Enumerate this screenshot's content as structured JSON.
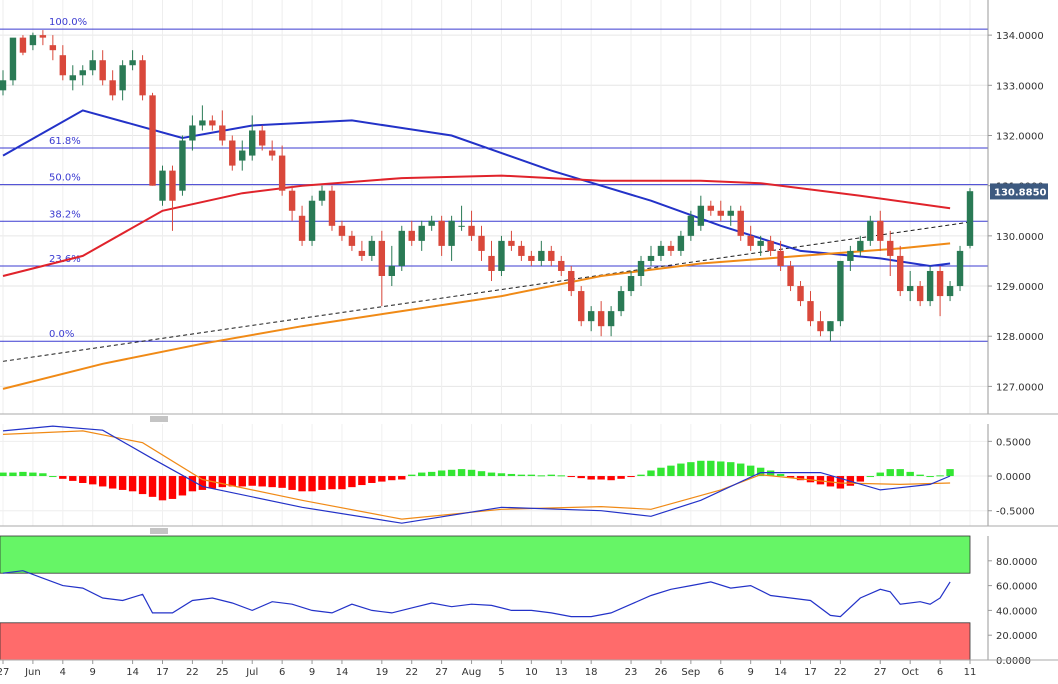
{
  "chart_data": [
    {
      "type": "candlestick",
      "panel": "price",
      "x_ticks": [
        "27",
        "Jun",
        "4",
        "9",
        "14",
        "17",
        "22",
        "25",
        "Jul",
        "6",
        "9",
        "14",
        "19",
        "22",
        "27",
        "Aug",
        "5",
        "10",
        "13",
        "18",
        "23",
        "26",
        "Sep",
        "6",
        "9",
        "14",
        "17",
        "22",
        "27",
        "Oct",
        "6",
        "11"
      ],
      "y_ticks": [
        "134.0000",
        "133.0000",
        "132.0000",
        "131.0000",
        "130.0000",
        "129.0000",
        "128.0000",
        "127.0000"
      ],
      "ylim": [
        126.45,
        134.7
      ],
      "last_price_label": "130.8850",
      "colors": {
        "up": "#2a7a55",
        "down": "#d9483b",
        "grid": "#e6e6e6",
        "fib": "#3b3bd1",
        "axis_label_bg": "#3d5a80"
      },
      "candles": [
        [
          132.9,
          133.3,
          132.8,
          133.1
        ],
        [
          133.1,
          133.9,
          133.0,
          133.95
        ],
        [
          133.95,
          134.0,
          133.6,
          133.65
        ],
        [
          133.8,
          134.05,
          133.7,
          134.0
        ],
        [
          134.0,
          134.1,
          133.8,
          133.95
        ],
        [
          133.8,
          134.0,
          133.5,
          133.7
        ],
        [
          133.6,
          133.8,
          133.1,
          133.2
        ],
        [
          133.1,
          133.4,
          132.9,
          133.2
        ],
        [
          133.2,
          133.4,
          133.0,
          133.3
        ],
        [
          133.3,
          133.7,
          133.2,
          133.5
        ],
        [
          133.5,
          133.7,
          133.0,
          133.1
        ],
        [
          133.1,
          133.3,
          132.7,
          132.8
        ],
        [
          132.9,
          133.5,
          132.7,
          133.4
        ],
        [
          133.4,
          133.7,
          133.3,
          133.5
        ],
        [
          133.5,
          133.6,
          132.7,
          132.8
        ],
        [
          132.8,
          132.85,
          131.0,
          131.0
        ],
        [
          130.7,
          131.4,
          130.6,
          131.3
        ],
        [
          131.3,
          131.4,
          130.1,
          130.7
        ],
        [
          130.9,
          132.0,
          130.8,
          131.9
        ],
        [
          131.9,
          132.4,
          131.7,
          132.2
        ],
        [
          132.2,
          132.6,
          132.1,
          132.3
        ],
        [
          132.3,
          132.4,
          132.1,
          132.2
        ],
        [
          132.2,
          132.5,
          131.8,
          131.9
        ],
        [
          131.9,
          132.0,
          131.3,
          131.4
        ],
        [
          131.5,
          131.9,
          131.3,
          131.7
        ],
        [
          131.6,
          132.4,
          131.5,
          132.1
        ],
        [
          132.1,
          132.2,
          131.7,
          131.8
        ],
        [
          131.7,
          131.9,
          131.5,
          131.6
        ],
        [
          131.6,
          131.8,
          130.8,
          130.9
        ],
        [
          130.9,
          131.0,
          130.3,
          130.5
        ],
        [
          130.4,
          130.6,
          129.8,
          129.9
        ],
        [
          129.9,
          130.8,
          129.8,
          130.7
        ],
        [
          130.7,
          131.0,
          130.6,
          130.9
        ],
        [
          130.9,
          131.0,
          130.1,
          130.2
        ],
        [
          130.2,
          130.3,
          129.9,
          130.0
        ],
        [
          130.0,
          130.1,
          129.7,
          129.8
        ],
        [
          129.7,
          129.9,
          129.5,
          129.6
        ],
        [
          129.6,
          130.0,
          129.5,
          129.9
        ],
        [
          129.9,
          130.1,
          128.6,
          129.2
        ],
        [
          129.2,
          129.8,
          129.0,
          129.4
        ],
        [
          129.4,
          130.2,
          129.3,
          130.1
        ],
        [
          130.1,
          130.3,
          129.8,
          129.9
        ],
        [
          129.9,
          130.3,
          129.7,
          130.2
        ],
        [
          130.2,
          130.4,
          130.1,
          130.3
        ],
        [
          130.3,
          130.4,
          129.6,
          129.8
        ],
        [
          129.8,
          130.4,
          129.5,
          130.3
        ],
        [
          130.2,
          130.6,
          130.1,
          130.2
        ],
        [
          130.2,
          130.5,
          129.9,
          130.0
        ],
        [
          130.0,
          130.2,
          129.5,
          129.7
        ],
        [
          129.6,
          129.9,
          129.1,
          129.3
        ],
        [
          129.3,
          130.0,
          129.2,
          129.9
        ],
        [
          129.9,
          130.1,
          129.7,
          129.8
        ],
        [
          129.8,
          129.9,
          129.5,
          129.6
        ],
        [
          129.6,
          129.7,
          129.4,
          129.5
        ],
        [
          129.5,
          129.9,
          129.4,
          129.7
        ],
        [
          129.7,
          129.8,
          129.4,
          129.5
        ],
        [
          129.5,
          129.6,
          129.2,
          129.3
        ],
        [
          129.3,
          129.4,
          128.8,
          128.9
        ],
        [
          128.9,
          129.0,
          128.2,
          128.3
        ],
        [
          128.3,
          128.6,
          128.1,
          128.5
        ],
        [
          128.5,
          128.7,
          128.0,
          128.2
        ],
        [
          128.2,
          128.6,
          128.0,
          128.5
        ],
        [
          128.5,
          129.0,
          128.4,
          128.9
        ],
        [
          128.9,
          129.3,
          128.8,
          129.2
        ],
        [
          129.2,
          129.6,
          129.0,
          129.5
        ],
        [
          129.5,
          129.8,
          129.4,
          129.6
        ],
        [
          129.6,
          129.9,
          129.5,
          129.8
        ],
        [
          129.8,
          129.9,
          129.6,
          129.7
        ],
        [
          129.7,
          130.1,
          129.6,
          130.0
        ],
        [
          130.0,
          130.5,
          129.9,
          130.4
        ],
        [
          130.2,
          130.8,
          130.1,
          130.6
        ],
        [
          130.6,
          130.7,
          130.4,
          130.5
        ],
        [
          130.5,
          130.7,
          130.3,
          130.4
        ],
        [
          130.4,
          130.6,
          130.2,
          130.5
        ],
        [
          130.5,
          130.6,
          129.9,
          130.0
        ],
        [
          130.0,
          130.2,
          129.7,
          129.8
        ],
        [
          129.8,
          130.0,
          129.6,
          129.9
        ],
        [
          129.9,
          130.0,
          129.6,
          129.7
        ],
        [
          129.7,
          129.9,
          129.3,
          129.4
        ],
        [
          129.4,
          129.5,
          128.9,
          129.0
        ],
        [
          129.0,
          129.1,
          128.6,
          128.7
        ],
        [
          128.7,
          128.9,
          128.2,
          128.3
        ],
        [
          128.3,
          128.5,
          128.0,
          128.1
        ],
        [
          128.1,
          128.3,
          127.9,
          128.3
        ],
        [
          128.3,
          129.5,
          128.2,
          129.5
        ],
        [
          129.5,
          129.8,
          129.3,
          129.7
        ],
        [
          129.7,
          130.0,
          129.6,
          129.9
        ],
        [
          129.9,
          130.4,
          129.8,
          130.3
        ],
        [
          130.3,
          130.5,
          129.7,
          129.9
        ],
        [
          129.9,
          130.1,
          129.2,
          129.6
        ],
        [
          129.6,
          129.8,
          128.8,
          128.9
        ],
        [
          128.9,
          129.3,
          128.7,
          129.0
        ],
        [
          129.0,
          129.1,
          128.6,
          128.7
        ],
        [
          128.7,
          129.4,
          128.6,
          129.3
        ],
        [
          129.3,
          129.4,
          128.4,
          128.8
        ],
        [
          128.8,
          129.1,
          128.7,
          129.0
        ],
        [
          129.0,
          129.8,
          128.9,
          129.7
        ],
        [
          129.8,
          130.95,
          129.75,
          130.89
        ]
      ],
      "moving_averages": [
        {
          "color": "#2332c8",
          "points": [
            [
              0,
              131.6
            ],
            [
              8,
              132.5
            ],
            [
              18,
              131.95
            ],
            [
              25,
              132.2
            ],
            [
              35,
              132.3
            ],
            [
              45,
              132.0
            ],
            [
              55,
              131.3
            ],
            [
              65,
              130.7
            ],
            [
              72,
              130.2
            ],
            [
              80,
              129.7
            ],
            [
              88,
              129.55
            ],
            [
              93,
              129.4
            ],
            [
              95,
              129.45
            ]
          ]
        },
        {
          "color": "#e0232b",
          "points": [
            [
              0,
              129.2
            ],
            [
              8,
              129.6
            ],
            [
              16,
              130.5
            ],
            [
              24,
              130.85
            ],
            [
              30,
              131.0
            ],
            [
              40,
              131.15
            ],
            [
              50,
              131.2
            ],
            [
              60,
              131.1
            ],
            [
              70,
              131.1
            ],
            [
              76,
              131.05
            ],
            [
              86,
              130.8
            ],
            [
              95,
              130.55
            ]
          ]
        },
        {
          "color": "#f08a16",
          "points": [
            [
              0,
              126.95
            ],
            [
              10,
              127.45
            ],
            [
              20,
              127.85
            ],
            [
              30,
              128.2
            ],
            [
              40,
              128.5
            ],
            [
              50,
              128.8
            ],
            [
              60,
              129.2
            ],
            [
              70,
              129.45
            ],
            [
              80,
              129.6
            ],
            [
              90,
              129.75
            ],
            [
              95,
              129.85
            ]
          ]
        }
      ],
      "trendline": {
        "color": "#1a1a1a",
        "from": [
          0,
          127.5
        ],
        "to": [
          95,
          130.2
        ]
      },
      "fibonacci": [
        {
          "label": "100.0%",
          "value": 134.12
        },
        {
          "label": "61.8%",
          "value": 131.75
        },
        {
          "label": "50.0%",
          "value": 131.02
        },
        {
          "label": "38.2%",
          "value": 130.29
        },
        {
          "label": "23.6%",
          "value": 129.4
        },
        {
          "label": "0.0%",
          "value": 127.9
        }
      ]
    },
    {
      "type": "macd",
      "panel": "oscillator",
      "y_ticks": [
        "0.5000",
        "0.0000",
        "-0.5000"
      ],
      "ylim": [
        -0.72,
        0.75
      ],
      "colors": {
        "macd": "#2332c8",
        "signal": "#f08a16",
        "hist_pos": "#33e633",
        "hist_neg": "#ff0000"
      },
      "histogram": [
        0.05,
        0.05,
        0.06,
        0.05,
        0.04,
        0.0,
        -0.04,
        -0.07,
        -0.1,
        -0.12,
        -0.15,
        -0.18,
        -0.2,
        -0.22,
        -0.26,
        -0.3,
        -0.35,
        -0.33,
        -0.28,
        -0.22,
        -0.2,
        -0.18,
        -0.16,
        -0.15,
        -0.15,
        -0.14,
        -0.15,
        -0.16,
        -0.17,
        -0.2,
        -0.22,
        -0.22,
        -0.2,
        -0.19,
        -0.19,
        -0.16,
        -0.13,
        -0.1,
        -0.08,
        -0.06,
        -0.05,
        0.02,
        0.05,
        0.06,
        0.08,
        0.09,
        0.1,
        0.09,
        0.07,
        0.05,
        0.04,
        0.03,
        0.02,
        0.02,
        0.01,
        0.02,
        0.01,
        -0.01,
        -0.03,
        -0.05,
        -0.05,
        -0.06,
        -0.04,
        -0.01,
        0.02,
        0.08,
        0.12,
        0.15,
        0.18,
        0.2,
        0.22,
        0.22,
        0.21,
        0.2,
        0.18,
        0.15,
        0.12,
        0.08,
        0.03,
        -0.02,
        -0.06,
        -0.09,
        -0.12,
        -0.15,
        -0.18,
        -0.14,
        -0.08,
        0.0,
        0.05,
        0.1,
        0.1,
        0.06,
        0.02,
        0.0,
        0.01,
        0.1
      ],
      "macd_points": [
        [
          0,
          0.65
        ],
        [
          5,
          0.72
        ],
        [
          10,
          0.66
        ],
        [
          15,
          0.25
        ],
        [
          20,
          -0.15
        ],
        [
          30,
          -0.45
        ],
        [
          40,
          -0.68
        ],
        [
          50,
          -0.45
        ],
        [
          60,
          -0.5
        ],
        [
          65,
          -0.58
        ],
        [
          70,
          -0.35
        ],
        [
          76,
          0.05
        ],
        [
          82,
          0.05
        ],
        [
          88,
          -0.2
        ],
        [
          93,
          -0.12
        ],
        [
          95,
          0.0
        ]
      ],
      "signal_points": [
        [
          0,
          0.6
        ],
        [
          8,
          0.65
        ],
        [
          14,
          0.48
        ],
        [
          20,
          -0.05
        ],
        [
          30,
          -0.35
        ],
        [
          40,
          -0.62
        ],
        [
          50,
          -0.48
        ],
        [
          60,
          -0.44
        ],
        [
          65,
          -0.48
        ],
        [
          72,
          -0.2
        ],
        [
          76,
          0.02
        ],
        [
          84,
          -0.1
        ],
        [
          90,
          -0.12
        ],
        [
          95,
          -0.1
        ]
      ]
    },
    {
      "type": "rsi",
      "panel": "rsi",
      "y_ticks": [
        "80.0000",
        "60.0000",
        "40.0000",
        "20.0000",
        "0.0000"
      ],
      "ylim": [
        0,
        100
      ],
      "bands": [
        {
          "from": 70,
          "to": 100,
          "color": "#66f566"
        },
        {
          "from": 0,
          "to": 30,
          "color": "#ff6b6b"
        }
      ],
      "line_color": "#2332c8",
      "points": [
        [
          0,
          70
        ],
        [
          2,
          72
        ],
        [
          4,
          66
        ],
        [
          6,
          60
        ],
        [
          8,
          58
        ],
        [
          10,
          50
        ],
        [
          12,
          48
        ],
        [
          14,
          53
        ],
        [
          15,
          38
        ],
        [
          17,
          38
        ],
        [
          19,
          48
        ],
        [
          21,
          50
        ],
        [
          23,
          46
        ],
        [
          25,
          40
        ],
        [
          27,
          47
        ],
        [
          29,
          45
        ],
        [
          31,
          40
        ],
        [
          33,
          38
        ],
        [
          35,
          45
        ],
        [
          37,
          40
        ],
        [
          39,
          38
        ],
        [
          41,
          42
        ],
        [
          43,
          46
        ],
        [
          45,
          43
        ],
        [
          47,
          45
        ],
        [
          49,
          44
        ],
        [
          51,
          40
        ],
        [
          53,
          40
        ],
        [
          55,
          38
        ],
        [
          57,
          35
        ],
        [
          59,
          35
        ],
        [
          61,
          38
        ],
        [
          63,
          45
        ],
        [
          65,
          52
        ],
        [
          67,
          57
        ],
        [
          69,
          60
        ],
        [
          71,
          63
        ],
        [
          73,
          58
        ],
        [
          75,
          60
        ],
        [
          77,
          52
        ],
        [
          79,
          50
        ],
        [
          81,
          48
        ],
        [
          83,
          36
        ],
        [
          84,
          35
        ],
        [
          86,
          50
        ],
        [
          88,
          57
        ],
        [
          89,
          55
        ],
        [
          90,
          45
        ],
        [
          92,
          47
        ],
        [
          93,
          45
        ],
        [
          94,
          50
        ],
        [
          95,
          63
        ]
      ]
    }
  ]
}
